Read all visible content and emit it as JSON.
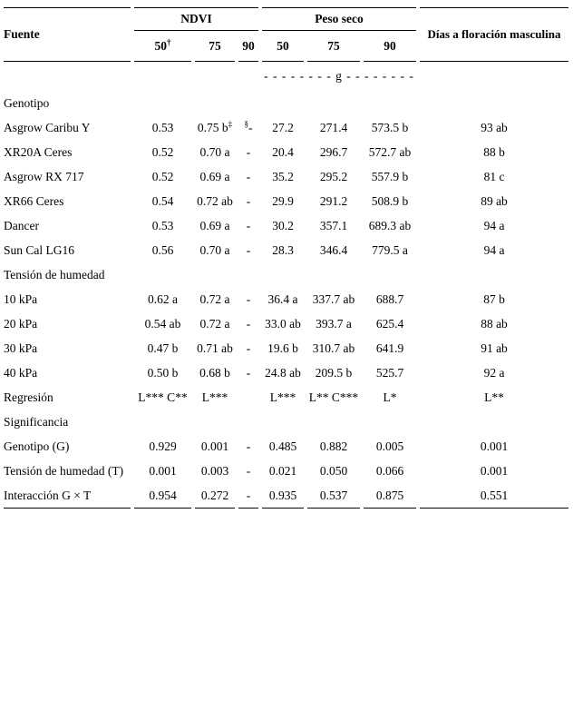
{
  "page": {
    "background": "#ffffff",
    "text_color": "#000000",
    "rule_color": "#000000"
  },
  "table": {
    "header": {
      "fuente": "Fuente",
      "ndvi_group": "NDVI",
      "peso_seco_group": "Peso seco",
      "dias": "Días a floración masculina",
      "subcols": [
        "50",
        "75",
        "90",
        "50",
        "75",
        "90"
      ],
      "dagger": "†"
    },
    "units_row": "- - - - - - - - g - - - - - - - -",
    "rows": [
      {
        "label": "Genotipo",
        "section": true,
        "cells": [
          "",
          "",
          "",
          "",
          "",
          "",
          ""
        ]
      },
      {
        "label": "Asgrow Caribu Y",
        "cells": [
          "0.53",
          "0.75 b‡",
          "§-",
          "27.2",
          "271.4",
          "573.5 b",
          "93 ab"
        ]
      },
      {
        "label": "XR20A Ceres",
        "cells": [
          "0.52",
          "0.70 a",
          "-",
          "20.4",
          "296.7",
          "572.7 ab",
          "88 b"
        ]
      },
      {
        "label": "Asgrow RX 717",
        "cells": [
          "0.52",
          "0.69 a",
          "-",
          "35.2",
          "295.2",
          "557.9 b",
          "81 c"
        ]
      },
      {
        "label": "XR66 Ceres",
        "cells": [
          "0.54",
          "0.72 ab",
          "-",
          "29.9",
          "291.2",
          "508.9 b",
          "89 ab"
        ]
      },
      {
        "label": "Dancer",
        "cells": [
          "0.53",
          "0.69 a",
          "-",
          "30.2",
          "357.1",
          "689.3 ab",
          "94 a"
        ]
      },
      {
        "label": "Sun Cal LG16",
        "cells": [
          "0.56",
          "0.70 a",
          "-",
          "28.3",
          "346.4",
          "779.5 a",
          "94 a"
        ]
      },
      {
        "label": "Tensión de humedad",
        "section": true,
        "cells": [
          "",
          "",
          "",
          "",
          "",
          "",
          ""
        ]
      },
      {
        "label": "10 kPa",
        "cells": [
          "0.62 a",
          "0.72 a",
          "-",
          "36.4 a",
          "337.7 ab",
          "688.7",
          "87 b"
        ]
      },
      {
        "label": "20 kPa",
        "cells": [
          "0.54 ab",
          "0.72 a",
          "-",
          "33.0 ab",
          "393.7 a",
          "625.4",
          "88 ab"
        ]
      },
      {
        "label": "30 kPa",
        "cells": [
          "0.47 b",
          "0.71 ab",
          "-",
          "19.6 b",
          "310.7 ab",
          "641.9",
          "91 ab"
        ]
      },
      {
        "label": "40 kPa",
        "cells": [
          "0.50 b",
          "0.68 b",
          "-",
          "24.8 ab",
          "209.5 b",
          "525.7",
          "92 a"
        ]
      },
      {
        "label": "Regresión",
        "cells": [
          "L*** C**",
          "L***",
          "",
          "L***",
          "L** C***",
          "L*",
          "L**"
        ]
      },
      {
        "label": "Significancia",
        "section": true,
        "cells": [
          "",
          "",
          "",
          "",
          "",
          "",
          ""
        ]
      },
      {
        "label": "Genotipo (G)",
        "cells": [
          "0.929",
          "0.001",
          "-",
          "0.485",
          "0.882",
          "0.005",
          "0.001"
        ]
      },
      {
        "label": "Tensión de humedad (T)",
        "cells": [
          "0.001",
          "0.003",
          "-",
          "0.021",
          "0.050",
          "0.066",
          "0.001"
        ]
      },
      {
        "label": "Interacción G × T",
        "cells": [
          "0.954",
          "0.272",
          "-",
          "0.935",
          "0.537",
          "0.875",
          "0.551"
        ]
      }
    ]
  }
}
